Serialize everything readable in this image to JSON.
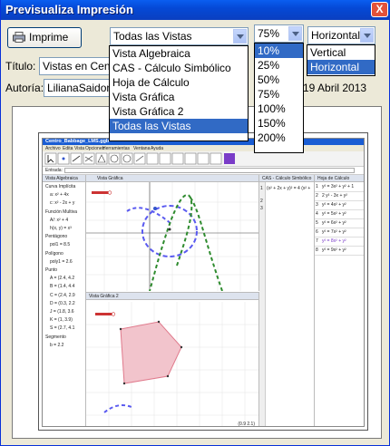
{
  "window": {
    "title": "Previsualiza Impresión",
    "close_glyph": "X"
  },
  "print_button": {
    "label": "Imprime",
    "icon": "printer-icon"
  },
  "view_select": {
    "value": "Todas las Vistas",
    "options": [
      "Vista Algebraica",
      "CAS - Cálculo Simbólico",
      "Hoja de Cálculo",
      "Vista Gráfica",
      "Vista Gráfica 2",
      "Todas las Vistas"
    ]
  },
  "zoom_select": {
    "value": "75%",
    "options": [
      "10%",
      "25%",
      "50%",
      "75%",
      "100%",
      "150%",
      "200%"
    ]
  },
  "orientation_select": {
    "value": "Horizontal",
    "options": [
      "Vertical",
      "Horizontal"
    ]
  },
  "title_field": {
    "label": "Título:",
    "value": "Vistas en Cent"
  },
  "author_field": {
    "label": "Autoría:",
    "value": "LilianaSaidon"
  },
  "date_text": "19 Abril 2013",
  "preview": {
    "app_title": "Centro_Babbage_LMS.ggb",
    "menu": [
      "Archivo",
      "Edita",
      "Vista",
      "Opciones",
      "Herramientas",
      "Ventana",
      "Ayuda"
    ],
    "input_label": "Entrada:",
    "algebra_title": "Vista Algebraica",
    "graphics_title": "Vista Gráfica",
    "cas_title": "CAS - Cálculo Simbólico",
    "sheet_title": "Hoja de Cálculo",
    "graphics2_title": "Vista Gráfica 2",
    "algebra_items": [
      "Curva Implícita",
      "a: x² + 4x",
      "c: x² - 2x + y",
      "Función Multiva",
      "A/: x² + 4",
      "h(x, y) = x³",
      "Pentágono",
      "pol1 = 8.5",
      "Polígono",
      "poly1 = 2.6",
      "Punto",
      "A = (2.4, 4.2",
      "B = (1.4, 4.4",
      "C = (2.4, 2.9",
      "D = (0.3, 2.2",
      "J = (1.8, 3.6",
      "K = (1, 3.9)",
      "S = (2.7, 4.1",
      "Segmento",
      "b = 2.2"
    ],
    "cas_rows": [
      "1",
      "2",
      "3"
    ],
    "cas_row1": "(x² + 2x + y)² = 4 (x² +",
    "sheet_rows": [
      "y² = 3x² + y² + 1",
      "2 y² - 3x + y²",
      "y² = 4x² + y²",
      "y² = 5x² + y²",
      "y² = 6x² + y²",
      "y² = 7x² + y²",
      "y² = 8x² + y²",
      "y² = 9x² + y²"
    ],
    "status": "(0.9  2.1)"
  },
  "colors": {
    "title_bar": "#0549d6",
    "selection": "#316ac5",
    "curve_blue": "#5a5af0",
    "curve_green": "#2e8b2e",
    "polygon": "#e07a8c"
  }
}
